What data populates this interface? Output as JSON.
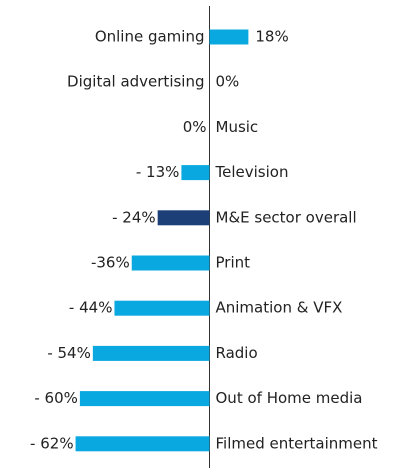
{
  "chart_data": {
    "type": "bar",
    "orientation": "horizontal",
    "categories": [
      "Online gaming",
      "Digital advertising",
      "Music",
      "Television",
      "M&E sector overall",
      "Print",
      "Animation & VFX",
      "Radio",
      "Out of Home media",
      "Filmed entertainment"
    ],
    "values": [
      18,
      0,
      0,
      -13,
      -24,
      -36,
      -44,
      -54,
      -60,
      -62
    ],
    "value_labels": [
      "18%",
      "0%",
      "0%",
      "- 13%",
      "- 24%",
      "-36%",
      "- 44%",
      "- 54%",
      "- 60%",
      "- 62%"
    ],
    "colors": [
      "#0aa8e0",
      "#0aa8e0",
      "#0aa8e0",
      "#0aa8e0",
      "#1d3f78",
      "#0aa8e0",
      "#0aa8e0",
      "#0aa8e0",
      "#0aa8e0",
      "#0aa8e0"
    ]
  }
}
